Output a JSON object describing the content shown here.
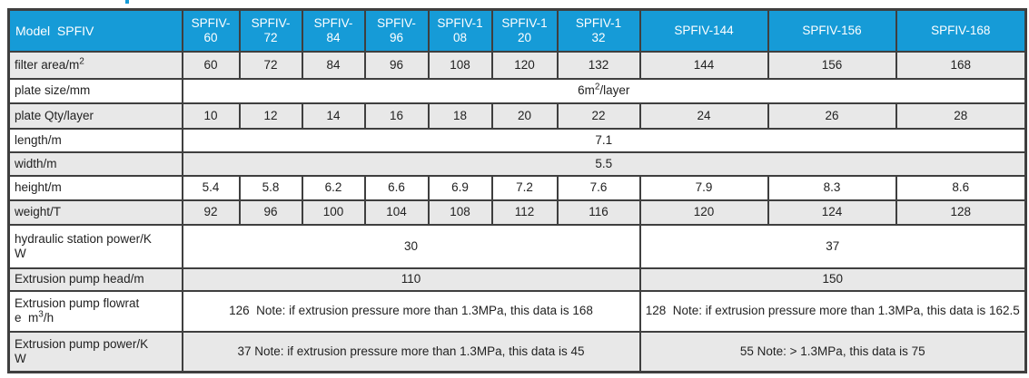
{
  "colors": {
    "header_bg": "#169BD7",
    "header_text": "#FFFFFF",
    "row_shade": "#E8E8E8",
    "row_plain": "#FFFFFF",
    "border": "#3F3F3F",
    "text": "#222222"
  },
  "table": {
    "model_header": [
      "Model  SPFIV"
    ],
    "columns": [
      {
        "name": "spfiv-60",
        "segs": [
          "SPFIV-",
          {
            "br": true
          },
          "60"
        ]
      },
      {
        "name": "spfiv-72",
        "segs": [
          "SPFIV-",
          {
            "br": true
          },
          "72"
        ]
      },
      {
        "name": "spfiv-84",
        "segs": [
          "SPFIV-",
          {
            "br": true
          },
          "84"
        ]
      },
      {
        "name": "spfiv-96",
        "segs": [
          "SPFIV-",
          {
            "br": true
          },
          "96"
        ]
      },
      {
        "name": "spfiv-108",
        "segs": [
          "SPFIV-1",
          {
            "br": true
          },
          "08"
        ]
      },
      {
        "name": "spfiv-120",
        "segs": [
          "SPFIV-1",
          {
            "br": true
          },
          "20"
        ]
      },
      {
        "name": "spfiv-132",
        "segs": [
          "SPFIV-1",
          {
            "br": true
          },
          "32"
        ]
      },
      {
        "name": "spfiv-144",
        "segs": [
          "SPFIV-144"
        ]
      },
      {
        "name": "spfiv-156",
        "segs": [
          "SPFIV-156"
        ]
      },
      {
        "name": "spfiv-168",
        "segs": [
          "SPFIV-168"
        ]
      }
    ],
    "rows": [
      {
        "name": "filter-area",
        "label": [
          "filter area/m",
          {
            "sup": "2"
          }
        ],
        "cells": [
          {
            "span": 1,
            "segs": [
              "60"
            ]
          },
          {
            "span": 1,
            "segs": [
              "72"
            ]
          },
          {
            "span": 1,
            "segs": [
              "84"
            ]
          },
          {
            "span": 1,
            "segs": [
              "96"
            ]
          },
          {
            "span": 1,
            "segs": [
              "108"
            ]
          },
          {
            "span": 1,
            "segs": [
              "120"
            ]
          },
          {
            "span": 1,
            "segs": [
              "132"
            ]
          },
          {
            "span": 1,
            "segs": [
              "144"
            ]
          },
          {
            "span": 1,
            "segs": [
              "156"
            ]
          },
          {
            "span": 1,
            "segs": [
              "168"
            ]
          }
        ]
      },
      {
        "name": "plate-size",
        "label": [
          "plate size/mm"
        ],
        "cells": [
          {
            "span": 10,
            "segs": [
              "6m",
              {
                "sup": "2"
              },
              "/layer"
            ]
          }
        ]
      },
      {
        "name": "plate-qty",
        "label": [
          "plate Qty/layer"
        ],
        "cells": [
          {
            "span": 1,
            "segs": [
              "10"
            ]
          },
          {
            "span": 1,
            "segs": [
              "12"
            ]
          },
          {
            "span": 1,
            "segs": [
              "14"
            ]
          },
          {
            "span": 1,
            "segs": [
              "16"
            ]
          },
          {
            "span": 1,
            "segs": [
              "18"
            ]
          },
          {
            "span": 1,
            "segs": [
              "20"
            ]
          },
          {
            "span": 1,
            "segs": [
              "22"
            ]
          },
          {
            "span": 1,
            "segs": [
              "24"
            ]
          },
          {
            "span": 1,
            "segs": [
              "26"
            ]
          },
          {
            "span": 1,
            "segs": [
              "28"
            ]
          }
        ]
      },
      {
        "name": "length",
        "label": [
          "length/m"
        ],
        "cells": [
          {
            "span": 10,
            "segs": [
              "7.1"
            ]
          }
        ]
      },
      {
        "name": "width",
        "label": [
          "width/m"
        ],
        "cells": [
          {
            "span": 10,
            "segs": [
              "5.5"
            ]
          }
        ]
      },
      {
        "name": "height",
        "label": [
          "height/m"
        ],
        "cells": [
          {
            "span": 1,
            "segs": [
              "5.4"
            ]
          },
          {
            "span": 1,
            "segs": [
              "5.8"
            ]
          },
          {
            "span": 1,
            "segs": [
              "6.2"
            ]
          },
          {
            "span": 1,
            "segs": [
              "6.6"
            ]
          },
          {
            "span": 1,
            "segs": [
              "6.9"
            ]
          },
          {
            "span": 1,
            "segs": [
              "7.2"
            ]
          },
          {
            "span": 1,
            "segs": [
              "7.6"
            ]
          },
          {
            "span": 1,
            "segs": [
              "7.9"
            ]
          },
          {
            "span": 1,
            "segs": [
              "8.3"
            ]
          },
          {
            "span": 1,
            "segs": [
              "8.6"
            ]
          }
        ]
      },
      {
        "name": "weight",
        "label": [
          "weight/T"
        ],
        "cells": [
          {
            "span": 1,
            "segs": [
              "92"
            ]
          },
          {
            "span": 1,
            "segs": [
              "96"
            ]
          },
          {
            "span": 1,
            "segs": [
              "100"
            ]
          },
          {
            "span": 1,
            "segs": [
              "104"
            ]
          },
          {
            "span": 1,
            "segs": [
              "108"
            ]
          },
          {
            "span": 1,
            "segs": [
              "112"
            ]
          },
          {
            "span": 1,
            "segs": [
              "116"
            ]
          },
          {
            "span": 1,
            "segs": [
              "120"
            ]
          },
          {
            "span": 1,
            "segs": [
              "124"
            ]
          },
          {
            "span": 1,
            "segs": [
              "128"
            ]
          }
        ]
      },
      {
        "name": "hydraulic-station-power",
        "label": [
          "hydraulic station power/K",
          {
            "br": true
          },
          "W"
        ],
        "cells": [
          {
            "span": 7,
            "segs": [
              "30"
            ]
          },
          {
            "span": 3,
            "segs": [
              "37"
            ]
          }
        ]
      },
      {
        "name": "extrusion-pump-head",
        "label": [
          "Extrusion pump head/m"
        ],
        "cells": [
          {
            "span": 7,
            "segs": [
              "110"
            ]
          },
          {
            "span": 3,
            "segs": [
              "150"
            ]
          }
        ]
      },
      {
        "name": "extrusion-pump-flowrate",
        "label": [
          "Extrusion pump flowrat",
          {
            "br": true
          },
          "e  m",
          {
            "sup": "3"
          },
          "/h"
        ],
        "cells": [
          {
            "span": 7,
            "segs": [
              "126  Note: if extrusion pressure more than 1.3MPa, this data is 168"
            ]
          },
          {
            "span": 3,
            "segs": [
              "128  Note: if extrusion pressure more than 1.3MPa, this data is 162.5"
            ]
          }
        ]
      },
      {
        "name": "extrusion-pump-power",
        "label": [
          "Extrusion pump power/K",
          {
            "br": true
          },
          "W"
        ],
        "cells": [
          {
            "span": 7,
            "segs": [
              "37 Note: if extrusion pressure more than 1.3MPa, this data is 45"
            ]
          },
          {
            "span": 3,
            "segs": [
              "55 Note: > 1.3MPa, this data is 75"
            ]
          }
        ]
      }
    ]
  }
}
